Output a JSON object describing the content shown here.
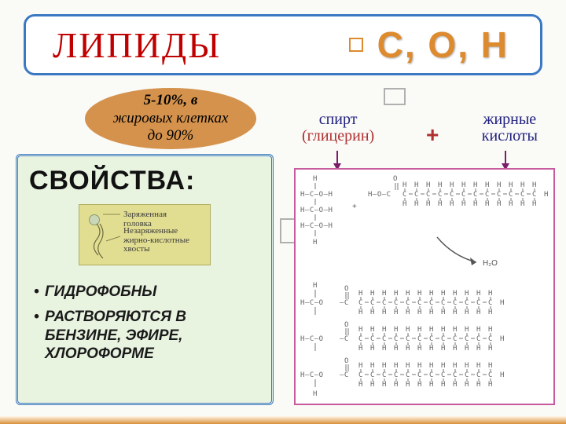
{
  "title": {
    "main": "ЛИПИДЫ",
    "elements": "С, О, Н"
  },
  "oval": {
    "line1": "5-10%, в",
    "line2": "жировых клетках",
    "line3": "до 90%"
  },
  "labels": {
    "alcohol_top": "спирт",
    "alcohol_bottom": "(глицерин)",
    "acids_top": "жирные",
    "acids_bottom": "кислоты",
    "plus": "+"
  },
  "properties": {
    "title": "СВОЙСТВА:",
    "inset": {
      "t1": "Заряженная",
      "t1b": "головка",
      "t2": "Незаряженные",
      "t2b": "жирно-кислотные",
      "t2c": "хвосты"
    },
    "items": [
      "ГИДРОФОБНЫ",
      "РАСТВОРЯЮТСЯ В БЕНЗИНЕ, ЭФИРЕ, ХЛОРОФОРМЕ"
    ]
  },
  "chem": {
    "plus": "+",
    "water": "H₂O",
    "glycerol_rows": [
      "H–C–O–H",
      "H–C–O–H",
      "H–C–O–H"
    ],
    "fatty_top": "H–O—C–",
    "chain_unit": "C",
    "h_unit": "H",
    "o_double": "O",
    "triglyc_prefix": "H–C–O—C–",
    "colors": {
      "panel_bg": "#ffffff",
      "panel_border": "#c85a9e",
      "text": "#555555",
      "arrow": "#555555"
    }
  }
}
